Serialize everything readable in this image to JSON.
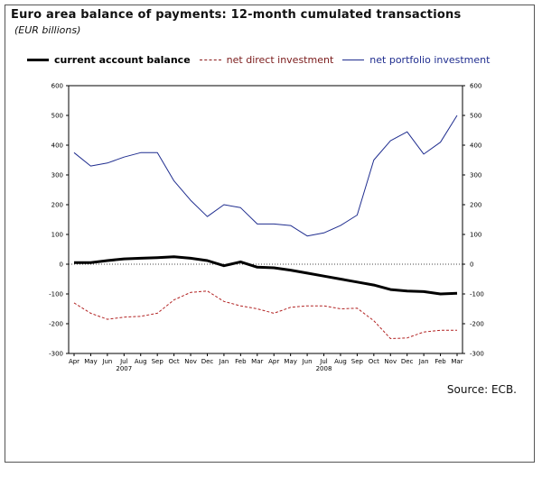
{
  "title": "Euro area balance of payments: 12-month cumulated transactions",
  "subtitle": "(EUR billions)",
  "source": "Source: ECB.",
  "colors": {
    "current_account": "#000000",
    "direct_investment": "#b22222",
    "portfolio_investment": "#1f2d8f",
    "zero_line": "#444444"
  },
  "chart_data": {
    "type": "line",
    "title": "Euro area balance of payments: 12-month cumulated transactions",
    "ylabel": "EUR billions",
    "xlabel": "",
    "ylim": [
      -300,
      600
    ],
    "yticks": [
      -300,
      -200,
      -100,
      0,
      100,
      200,
      300,
      400,
      500,
      600
    ],
    "categories": [
      "Apr",
      "May",
      "Jun",
      "Jul",
      "Aug",
      "Sep",
      "Oct",
      "Nov",
      "Dec",
      "Jan",
      "Feb",
      "Mar",
      "Apr",
      "May",
      "Jun",
      "Jul",
      "Aug",
      "Sep",
      "Oct",
      "Nov",
      "Dec",
      "Jan",
      "Feb",
      "Mar"
    ],
    "year_labels": [
      {
        "label": "2007",
        "category_index": 3
      },
      {
        "label": "2008",
        "category_index": 15
      }
    ],
    "legend_position": "top",
    "series": [
      {
        "name": "current account balance",
        "style": "solid-thick",
        "values": [
          5,
          5,
          12,
          18,
          20,
          22,
          25,
          20,
          12,
          -5,
          8,
          -10,
          -12,
          -20,
          -30,
          -40,
          -50,
          -60,
          -70,
          -85,
          -90,
          -92,
          -100,
          -98
        ]
      },
      {
        "name": "net direct investment",
        "style": "dashed",
        "values": [
          -130,
          -165,
          -185,
          -178,
          -175,
          -165,
          -120,
          -95,
          -90,
          -125,
          -140,
          -150,
          -165,
          -145,
          -140,
          -140,
          -150,
          -148,
          -190,
          -250,
          -248,
          -228,
          -222,
          -222
        ]
      },
      {
        "name": "net portfolio investment",
        "style": "solid-thin",
        "values": [
          375,
          330,
          340,
          360,
          375,
          375,
          280,
          215,
          160,
          200,
          190,
          135,
          135,
          130,
          95,
          105,
          130,
          165,
          350,
          415,
          445,
          370,
          410,
          500
        ]
      }
    ]
  }
}
